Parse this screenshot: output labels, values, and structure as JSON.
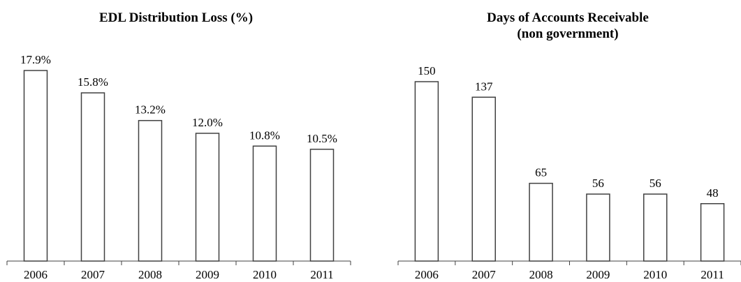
{
  "chart_data": [
    {
      "type": "bar",
      "title": [
        "EDL Distribution Loss (%)"
      ],
      "categories": [
        "2006",
        "2007",
        "2008",
        "2009",
        "2010",
        "2011"
      ],
      "values": [
        17.9,
        15.8,
        13.2,
        12.0,
        10.8,
        10.5
      ],
      "data_labels": [
        "17.9%",
        "15.8%",
        "13.2%",
        "12.0%",
        "10.8%",
        "10.5%"
      ],
      "xlabel": "",
      "ylabel": "",
      "ylim": [
        0,
        17.9
      ],
      "grid": false,
      "legend": "none"
    },
    {
      "type": "bar",
      "title": [
        "Days of Accounts Receivable",
        "(non government)"
      ],
      "categories": [
        "2006",
        "2007",
        "2008",
        "2009",
        "2010",
        "2011"
      ],
      "values": [
        150,
        137,
        65,
        56,
        56,
        48
      ],
      "data_labels": [
        "150",
        "137",
        "65",
        "56",
        "56",
        "48"
      ],
      "xlabel": "",
      "ylabel": "",
      "ylim": [
        0,
        150
      ],
      "grid": false,
      "legend": "none"
    }
  ],
  "colors": {
    "bar_fill": "#ffffff",
    "bar_stroke": "#404040",
    "axis": "#404040"
  }
}
